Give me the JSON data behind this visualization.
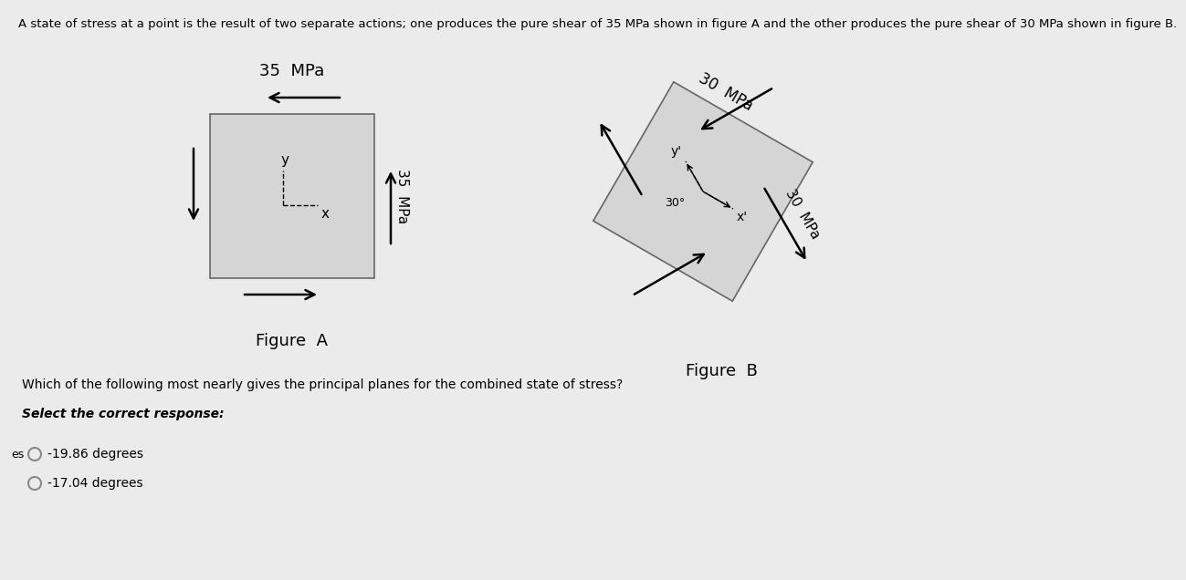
{
  "bg_color": "#ebebeb",
  "title_text": "A state of stress at a point is the result of two separate actions; one produces the pure shear of 35 MPa shown in figure A and the other produces the pure shear of 30 MPa shown in figure B.",
  "title_fontsize": 9.5,
  "fig_a_top_label": "35  MPa",
  "fig_a_side_label": "35  MPa",
  "fig_a_caption": "Figure  A",
  "fig_b_top_label": "30  MPa",
  "fig_b_side_label": "30  MPa",
  "fig_b_caption": "Figure  B",
  "fig_b_angle_label": "30°",
  "question_text": "Which of the following most nearly gives the principal planes for the combined state of stress?",
  "select_text": "Select the correct response:",
  "option1": "-19.86 degrees",
  "option2": "-17.04 degrees"
}
